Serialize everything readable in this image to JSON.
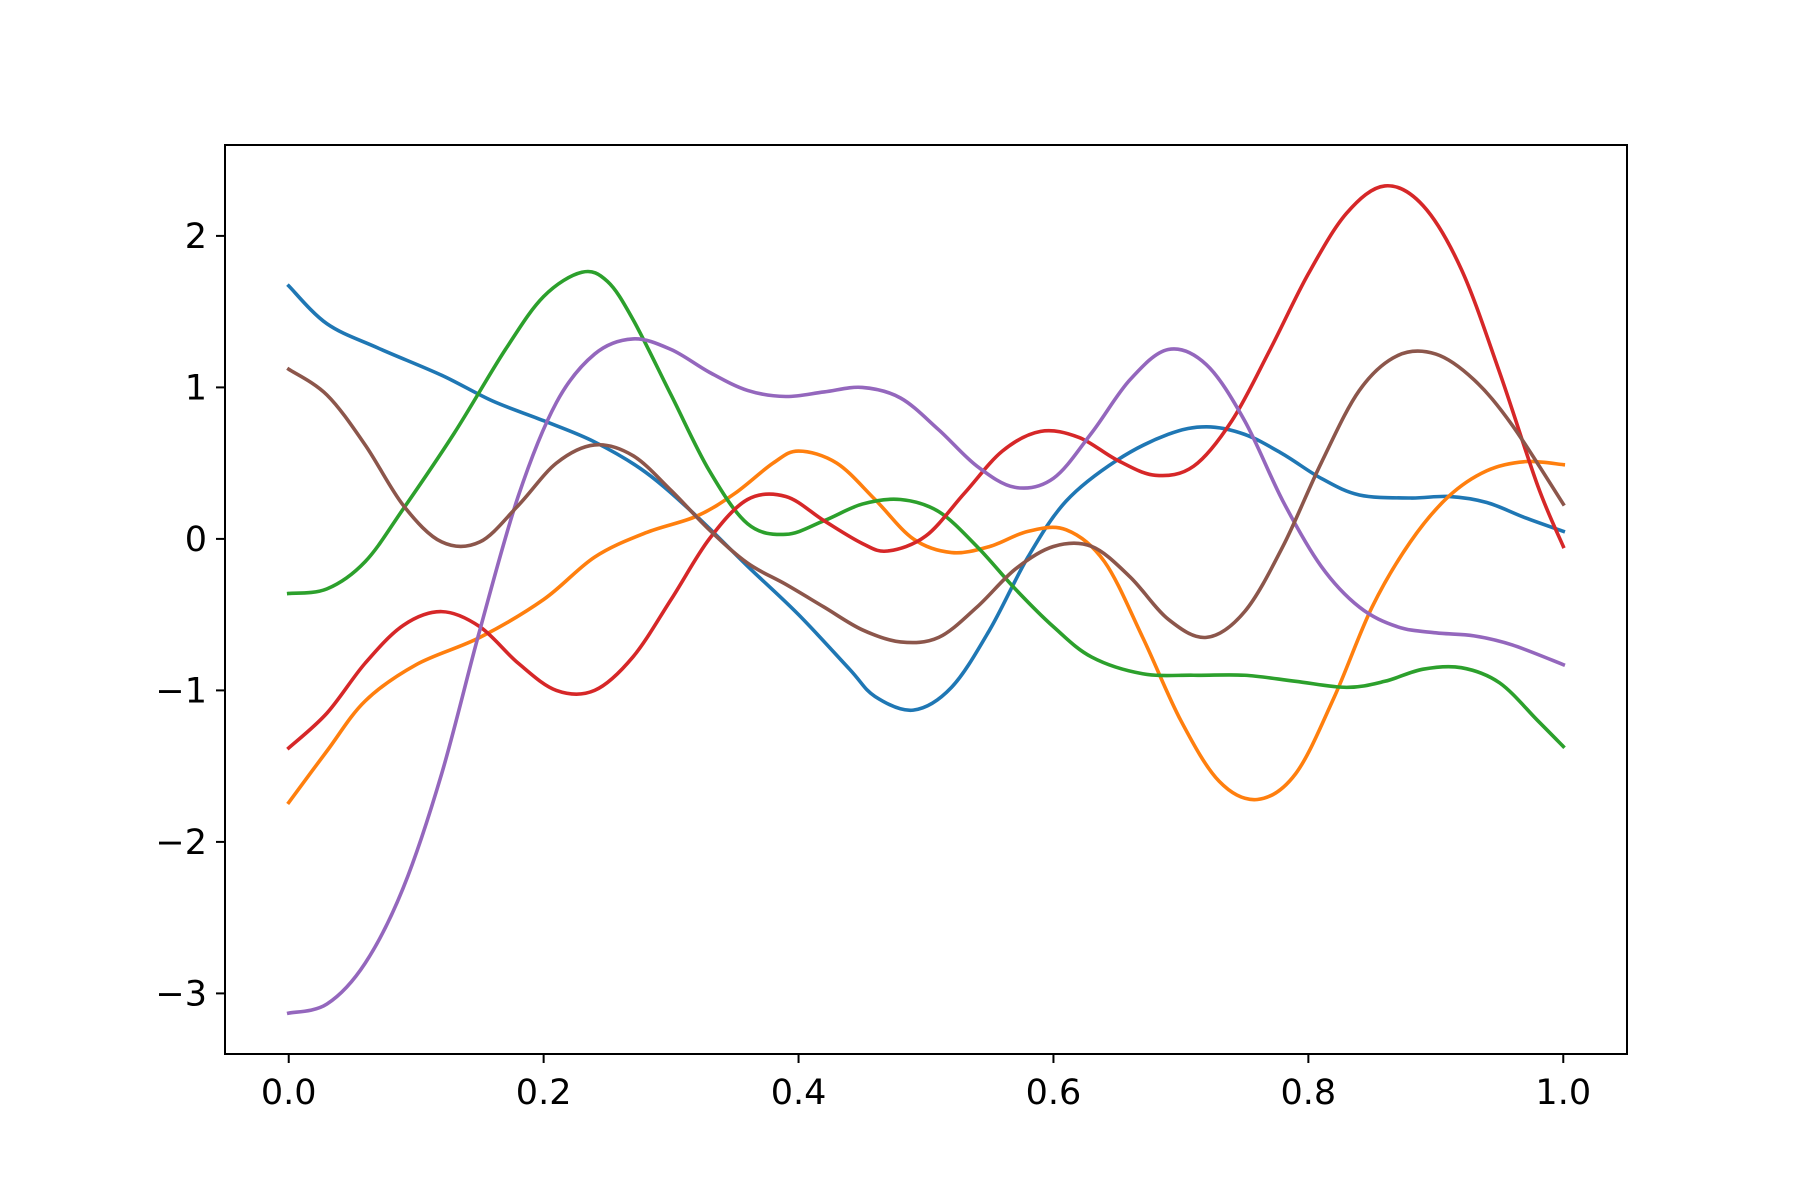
{
  "chart_data": {
    "type": "line",
    "title": "",
    "xlabel": "",
    "ylabel": "",
    "xlim": [
      -0.05,
      1.05
    ],
    "ylim": [
      -3.4,
      2.6
    ],
    "grid": false,
    "legend": "none",
    "xticks": [
      {
        "value": 0.0,
        "label": "0.0"
      },
      {
        "value": 0.2,
        "label": "0.2"
      },
      {
        "value": 0.4,
        "label": "0.4"
      },
      {
        "value": 0.6,
        "label": "0.6"
      },
      {
        "value": 0.8,
        "label": "0.8"
      },
      {
        "value": 1.0,
        "label": "1.0"
      }
    ],
    "yticks": [
      {
        "value": -3,
        "label": "−3"
      },
      {
        "value": -2,
        "label": "−2"
      },
      {
        "value": -1,
        "label": "−1"
      },
      {
        "value": 0,
        "label": "0"
      },
      {
        "value": 1,
        "label": "1"
      },
      {
        "value": 2,
        "label": "2"
      }
    ],
    "series": [
      {
        "color": "#1f77b4",
        "points": [
          [
            0.0,
            1.67
          ],
          [
            0.03,
            1.42
          ],
          [
            0.07,
            1.26
          ],
          [
            0.12,
            1.08
          ],
          [
            0.16,
            0.91
          ],
          [
            0.2,
            0.78
          ],
          [
            0.24,
            0.64
          ],
          [
            0.28,
            0.44
          ],
          [
            0.32,
            0.15
          ],
          [
            0.36,
            -0.18
          ],
          [
            0.4,
            -0.5
          ],
          [
            0.44,
            -0.86
          ],
          [
            0.46,
            -1.04
          ],
          [
            0.49,
            -1.13
          ],
          [
            0.52,
            -0.98
          ],
          [
            0.55,
            -0.6
          ],
          [
            0.58,
            -0.12
          ],
          [
            0.61,
            0.25
          ],
          [
            0.65,
            0.52
          ],
          [
            0.69,
            0.69
          ],
          [
            0.72,
            0.74
          ],
          [
            0.75,
            0.69
          ],
          [
            0.78,
            0.56
          ],
          [
            0.81,
            0.4
          ],
          [
            0.84,
            0.29
          ],
          [
            0.88,
            0.27
          ],
          [
            0.91,
            0.28
          ],
          [
            0.94,
            0.24
          ],
          [
            0.97,
            0.14
          ],
          [
            1.0,
            0.05
          ]
        ]
      },
      {
        "color": "#ff7f0e",
        "points": [
          [
            0.0,
            -1.74
          ],
          [
            0.03,
            -1.4
          ],
          [
            0.06,
            -1.07
          ],
          [
            0.1,
            -0.83
          ],
          [
            0.15,
            -0.65
          ],
          [
            0.2,
            -0.4
          ],
          [
            0.24,
            -0.12
          ],
          [
            0.28,
            0.04
          ],
          [
            0.32,
            0.15
          ],
          [
            0.35,
            0.3
          ],
          [
            0.38,
            0.5
          ],
          [
            0.4,
            0.58
          ],
          [
            0.43,
            0.5
          ],
          [
            0.46,
            0.26
          ],
          [
            0.49,
            0.0
          ],
          [
            0.52,
            -0.09
          ],
          [
            0.55,
            -0.05
          ],
          [
            0.58,
            0.05
          ],
          [
            0.61,
            0.06
          ],
          [
            0.64,
            -0.15
          ],
          [
            0.67,
            -0.65
          ],
          [
            0.7,
            -1.2
          ],
          [
            0.73,
            -1.6
          ],
          [
            0.76,
            -1.72
          ],
          [
            0.79,
            -1.55
          ],
          [
            0.82,
            -1.05
          ],
          [
            0.85,
            -0.45
          ],
          [
            0.88,
            -0.02
          ],
          [
            0.91,
            0.28
          ],
          [
            0.94,
            0.45
          ],
          [
            0.97,
            0.51
          ],
          [
            1.0,
            0.49
          ]
        ]
      },
      {
        "color": "#2ca02c",
        "points": [
          [
            0.0,
            -0.36
          ],
          [
            0.03,
            -0.33
          ],
          [
            0.06,
            -0.15
          ],
          [
            0.09,
            0.2
          ],
          [
            0.13,
            0.7
          ],
          [
            0.17,
            1.25
          ],
          [
            0.2,
            1.6
          ],
          [
            0.23,
            1.76
          ],
          [
            0.25,
            1.7
          ],
          [
            0.27,
            1.45
          ],
          [
            0.3,
            0.95
          ],
          [
            0.33,
            0.45
          ],
          [
            0.36,
            0.1
          ],
          [
            0.39,
            0.03
          ],
          [
            0.42,
            0.12
          ],
          [
            0.45,
            0.23
          ],
          [
            0.48,
            0.26
          ],
          [
            0.51,
            0.18
          ],
          [
            0.54,
            -0.05
          ],
          [
            0.57,
            -0.33
          ],
          [
            0.6,
            -0.58
          ],
          [
            0.63,
            -0.78
          ],
          [
            0.67,
            -0.89
          ],
          [
            0.71,
            -0.9
          ],
          [
            0.75,
            -0.9
          ],
          [
            0.79,
            -0.94
          ],
          [
            0.83,
            -0.98
          ],
          [
            0.86,
            -0.94
          ],
          [
            0.89,
            -0.86
          ],
          [
            0.92,
            -0.85
          ],
          [
            0.95,
            -0.95
          ],
          [
            0.98,
            -1.2
          ],
          [
            1.0,
            -1.37
          ]
        ]
      },
      {
        "color": "#d62728",
        "points": [
          [
            0.0,
            -1.38
          ],
          [
            0.03,
            -1.15
          ],
          [
            0.06,
            -0.82
          ],
          [
            0.09,
            -0.57
          ],
          [
            0.12,
            -0.48
          ],
          [
            0.15,
            -0.58
          ],
          [
            0.18,
            -0.82
          ],
          [
            0.21,
            -1.0
          ],
          [
            0.24,
            -1.0
          ],
          [
            0.27,
            -0.78
          ],
          [
            0.3,
            -0.4
          ],
          [
            0.33,
            0.0
          ],
          [
            0.36,
            0.26
          ],
          [
            0.39,
            0.28
          ],
          [
            0.42,
            0.12
          ],
          [
            0.45,
            -0.03
          ],
          [
            0.47,
            -0.08
          ],
          [
            0.5,
            0.02
          ],
          [
            0.53,
            0.3
          ],
          [
            0.56,
            0.58
          ],
          [
            0.59,
            0.71
          ],
          [
            0.62,
            0.67
          ],
          [
            0.65,
            0.52
          ],
          [
            0.68,
            0.42
          ],
          [
            0.71,
            0.48
          ],
          [
            0.74,
            0.78
          ],
          [
            0.77,
            1.25
          ],
          [
            0.8,
            1.75
          ],
          [
            0.83,
            2.15
          ],
          [
            0.86,
            2.33
          ],
          [
            0.89,
            2.2
          ],
          [
            0.92,
            1.78
          ],
          [
            0.95,
            1.1
          ],
          [
            0.98,
            0.35
          ],
          [
            1.0,
            -0.05
          ]
        ]
      },
      {
        "color": "#9467bd",
        "points": [
          [
            0.0,
            -3.13
          ],
          [
            0.03,
            -3.07
          ],
          [
            0.06,
            -2.8
          ],
          [
            0.09,
            -2.3
          ],
          [
            0.12,
            -1.55
          ],
          [
            0.15,
            -0.6
          ],
          [
            0.18,
            0.28
          ],
          [
            0.21,
            0.9
          ],
          [
            0.24,
            1.22
          ],
          [
            0.27,
            1.32
          ],
          [
            0.3,
            1.25
          ],
          [
            0.33,
            1.1
          ],
          [
            0.36,
            0.98
          ],
          [
            0.39,
            0.94
          ],
          [
            0.42,
            0.97
          ],
          [
            0.45,
            1.0
          ],
          [
            0.48,
            0.93
          ],
          [
            0.51,
            0.72
          ],
          [
            0.54,
            0.48
          ],
          [
            0.57,
            0.34
          ],
          [
            0.6,
            0.4
          ],
          [
            0.63,
            0.7
          ],
          [
            0.66,
            1.05
          ],
          [
            0.69,
            1.25
          ],
          [
            0.72,
            1.15
          ],
          [
            0.75,
            0.78
          ],
          [
            0.78,
            0.25
          ],
          [
            0.81,
            -0.18
          ],
          [
            0.84,
            -0.45
          ],
          [
            0.87,
            -0.58
          ],
          [
            0.9,
            -0.62
          ],
          [
            0.93,
            -0.64
          ],
          [
            0.96,
            -0.7
          ],
          [
            1.0,
            -0.83
          ]
        ]
      },
      {
        "color": "#8c564b",
        "points": [
          [
            0.0,
            1.12
          ],
          [
            0.03,
            0.95
          ],
          [
            0.06,
            0.62
          ],
          [
            0.09,
            0.22
          ],
          [
            0.12,
            -0.02
          ],
          [
            0.15,
            -0.02
          ],
          [
            0.18,
            0.22
          ],
          [
            0.21,
            0.5
          ],
          [
            0.24,
            0.62
          ],
          [
            0.27,
            0.55
          ],
          [
            0.3,
            0.32
          ],
          [
            0.33,
            0.06
          ],
          [
            0.36,
            -0.16
          ],
          [
            0.39,
            -0.3
          ],
          [
            0.42,
            -0.45
          ],
          [
            0.45,
            -0.6
          ],
          [
            0.48,
            -0.68
          ],
          [
            0.51,
            -0.65
          ],
          [
            0.54,
            -0.45
          ],
          [
            0.57,
            -0.2
          ],
          [
            0.6,
            -0.05
          ],
          [
            0.63,
            -0.05
          ],
          [
            0.66,
            -0.25
          ],
          [
            0.69,
            -0.53
          ],
          [
            0.72,
            -0.65
          ],
          [
            0.75,
            -0.48
          ],
          [
            0.78,
            -0.05
          ],
          [
            0.81,
            0.5
          ],
          [
            0.84,
            0.98
          ],
          [
            0.87,
            1.21
          ],
          [
            0.9,
            1.22
          ],
          [
            0.93,
            1.05
          ],
          [
            0.96,
            0.75
          ],
          [
            1.0,
            0.23
          ]
        ]
      }
    ]
  }
}
